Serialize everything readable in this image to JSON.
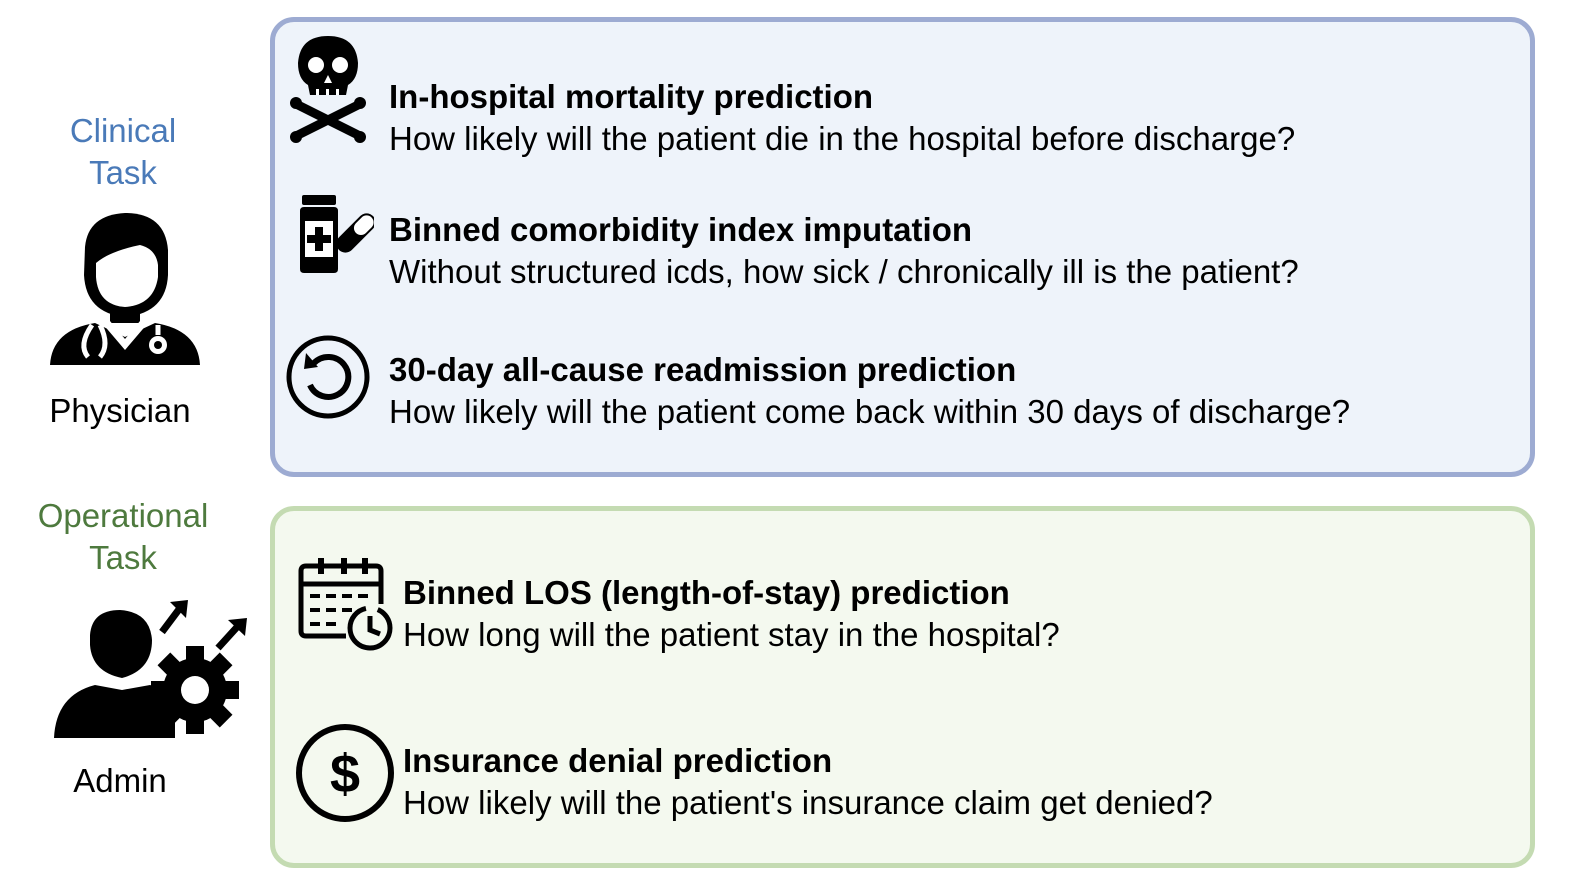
{
  "groups": {
    "clinical": {
      "label_line1": "Clinical",
      "label_line2": "Task",
      "label_color": "#4a7ab8",
      "role": "Physician",
      "role_icon": "physician-icon",
      "border_color": "#9dabd2",
      "fill_color": "#eef3fa",
      "tasks": [
        {
          "icon": "skull-crossbones-icon",
          "title": "In-hospital mortality prediction",
          "description": "How likely will the patient die in the hospital before discharge?"
        },
        {
          "icon": "medicine-bottle-icon",
          "title": "Binned comorbidity index imputation",
          "description": "Without structured icds, how sick / chronically ill is the patient?"
        },
        {
          "icon": "readmission-cycle-icon",
          "title": "30-day all-cause readmission prediction",
          "description": "How likely will the patient come back within 30 days of discharge?"
        }
      ]
    },
    "operational": {
      "label_line1": "Operational",
      "label_line2": "Task",
      "label_color": "#4e7a3e",
      "role": "Admin",
      "role_icon": "admin-icon",
      "border_color": "#c4dbb2",
      "fill_color": "#f4f9ef",
      "tasks": [
        {
          "icon": "calendar-clock-icon",
          "title": "Binned LOS (length-of-stay) prediction",
          "description": "How long will the patient stay in the hospital?"
        },
        {
          "icon": "dollar-circle-icon",
          "title": "Insurance denial prediction",
          "description": "How likely will the patient's insurance claim get denied?"
        }
      ]
    }
  }
}
